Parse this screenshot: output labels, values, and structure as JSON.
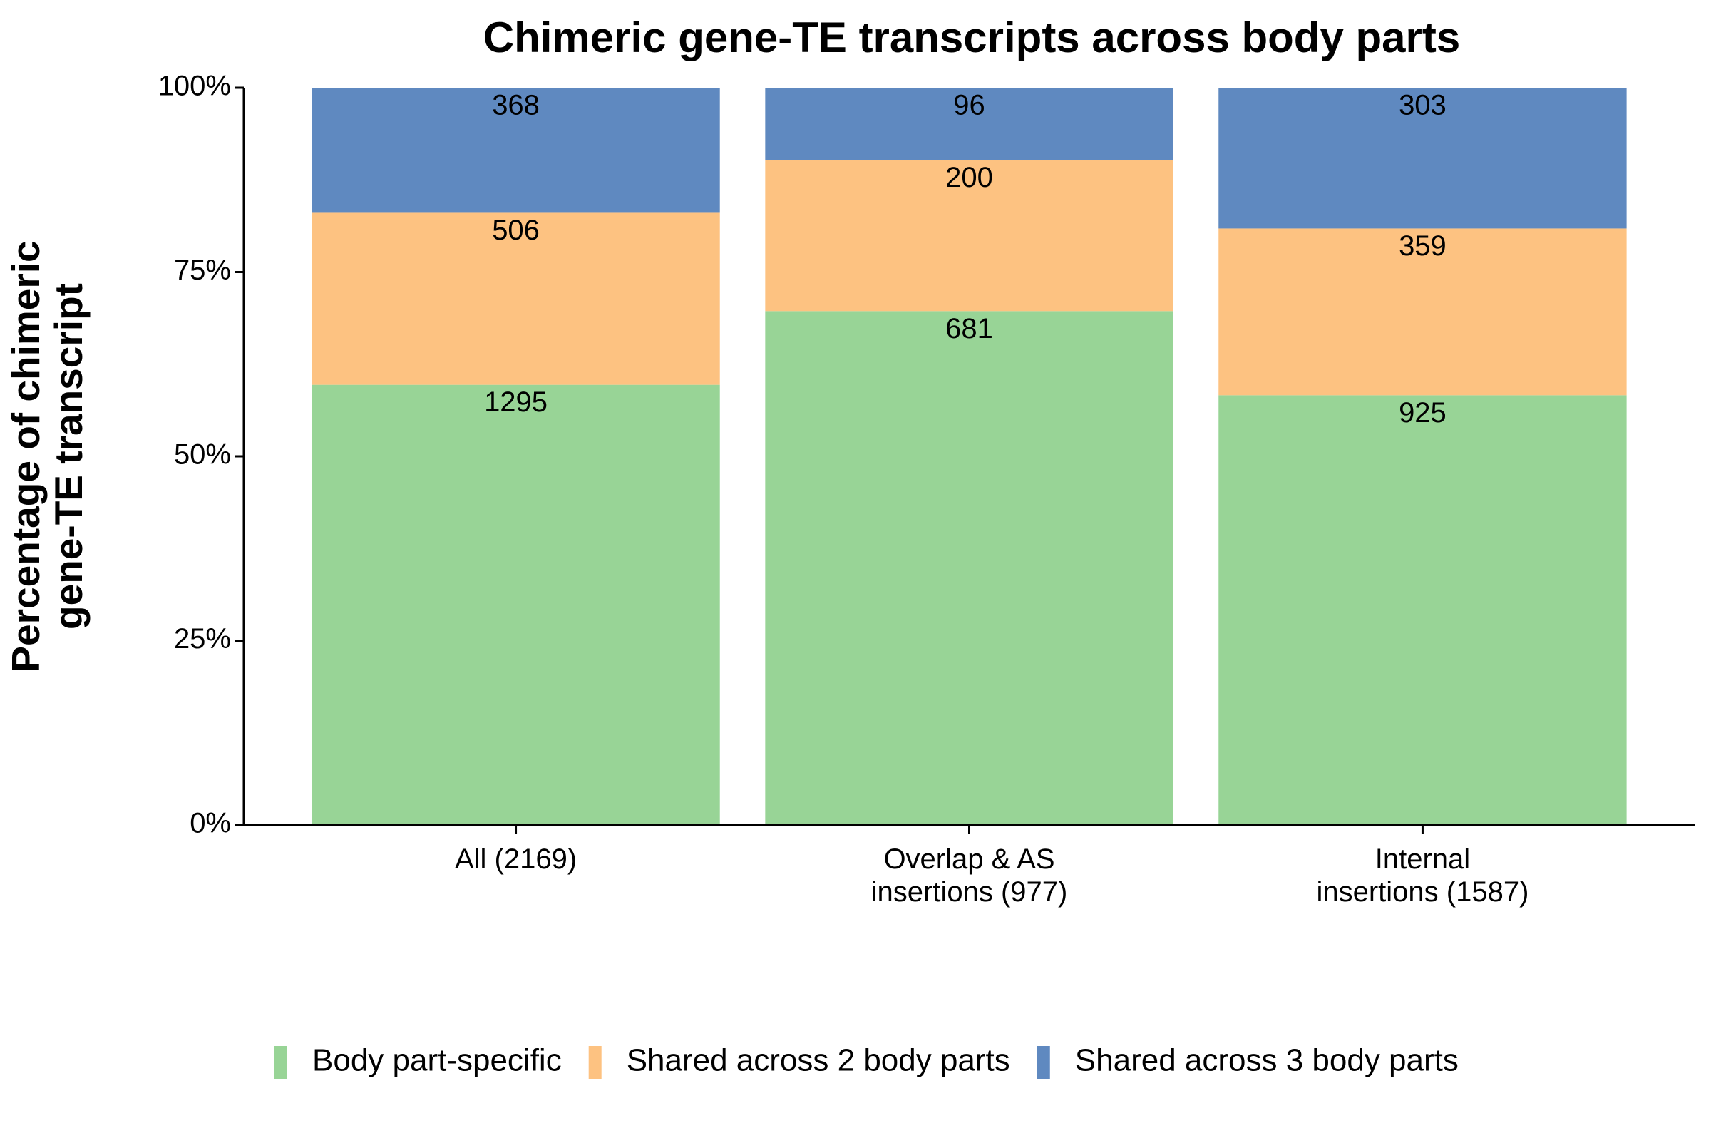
{
  "chart_data": {
    "type": "bar",
    "stacked": true,
    "normalize": "percent",
    "title": "Chimeric gene-TE transcripts across body parts",
    "ylabel": "Percentage of chimeric\ngene-TE transcript",
    "categories": [
      "All (2169)",
      "Overlap & AS\ninsertions (977)",
      "Internal\ninsertions (1587)"
    ],
    "series": [
      {
        "name": "Body part-specific",
        "color": "#98d496",
        "values": [
          1295,
          681,
          925
        ]
      },
      {
        "name": "Shared across 2 body parts",
        "color": "#fdc281",
        "values": [
          506,
          200,
          359
        ]
      },
      {
        "name": "Shared across 3 body parts",
        "color": "#5f89c0",
        "values": [
          368,
          96,
          303
        ]
      }
    ],
    "ylim": [
      0,
      100
    ],
    "yticks": [
      {
        "value": 0,
        "label": "0%"
      },
      {
        "value": 25,
        "label": "25%"
      },
      {
        "value": 50,
        "label": "50%"
      },
      {
        "value": 75,
        "label": "75%"
      },
      {
        "value": 100,
        "label": "100%"
      }
    ],
    "grid": false,
    "legend": "bottom"
  }
}
